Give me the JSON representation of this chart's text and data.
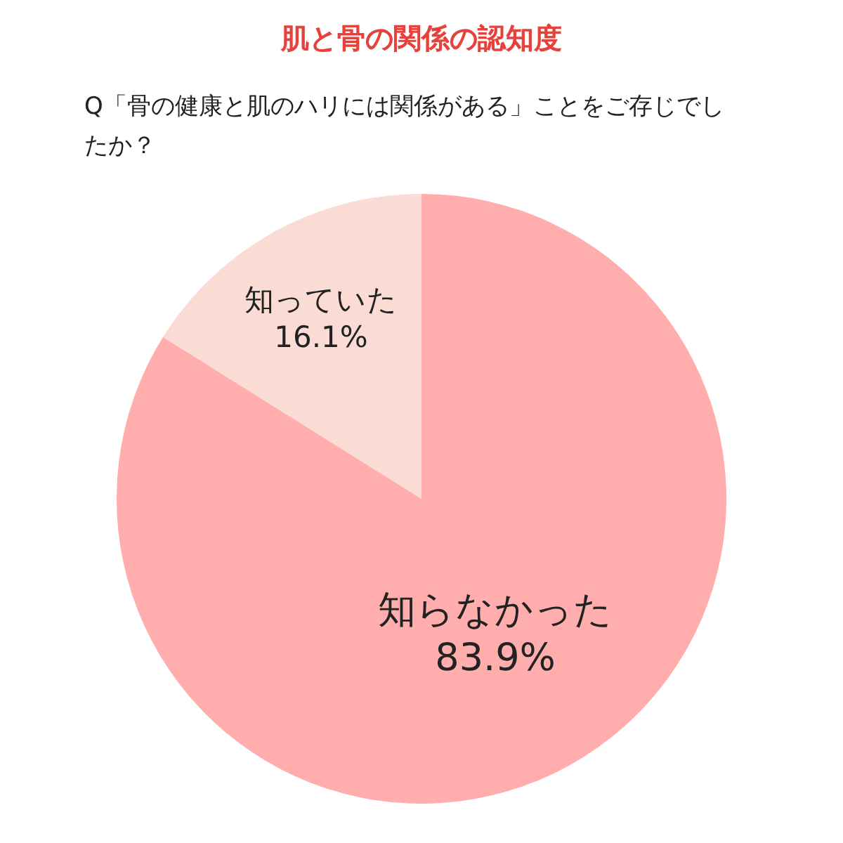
{
  "chart_data": {
    "type": "pie",
    "title": "肌と骨の関係の認知度",
    "subtitle": "Q「骨の健康と肌のハリには関係がある」ことをご存じでしたか？",
    "categories": [
      "知らなかった",
      "知っていた"
    ],
    "values": [
      83.9,
      16.1
    ],
    "colors": [
      "#ffadad",
      "#fadcd5"
    ],
    "value_labels": [
      "83.9%",
      "16.1%"
    ]
  }
}
